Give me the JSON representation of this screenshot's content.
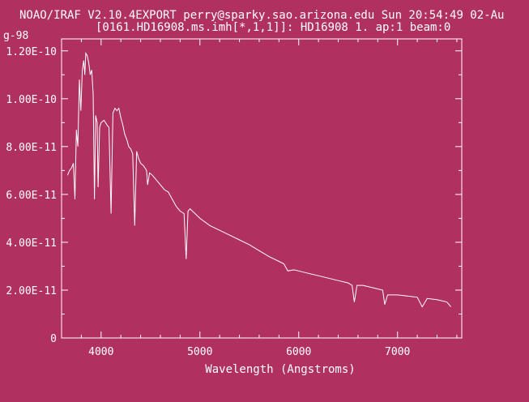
{
  "header": {
    "line1": "NOAO/IRAF V2.10.4EXPORT perry@sparky.sao.arizona.edu Sun 20:54:49 02-Au",
    "line2": "[0161.HD16908.ms.imh[*,1,1]]: HD16908 1. ap:1 beam:0",
    "corner": "g-98"
  },
  "colors": {
    "background": "#b03060",
    "foreground": "#ffffff"
  },
  "chart_data": {
    "type": "line",
    "title": "",
    "xlabel": "Wavelength (Angstroms)",
    "ylabel": "",
    "xlim": [
      3600,
      7650
    ],
    "ylim": [
      0,
      1.25e-10
    ],
    "grid": false,
    "x_ticks": [
      {
        "value": 4000,
        "label": "4000"
      },
      {
        "value": 5000,
        "label": "5000"
      },
      {
        "value": 6000,
        "label": "6000"
      },
      {
        "value": 7000,
        "label": "7000"
      }
    ],
    "y_ticks": [
      {
        "value": 0,
        "label": "0"
      },
      {
        "value": 2e-11,
        "label": "2.00E-11"
      },
      {
        "value": 4e-11,
        "label": "4.00E-11"
      },
      {
        "value": 6e-11,
        "label": "6.00E-11"
      },
      {
        "value": 8e-11,
        "label": "8.00E-11"
      },
      {
        "value": 1e-10,
        "label": "1.00E-10"
      },
      {
        "value": 1.2e-10,
        "label": "1.20E-10"
      }
    ],
    "series": [
      {
        "x": [
          3660,
          3680,
          3700,
          3720,
          3735,
          3750,
          3765,
          3780,
          3795,
          3810,
          3825,
          3835,
          3845,
          3860,
          3875,
          3890,
          3905,
          3920,
          3933,
          3945,
          3960,
          3970,
          3985,
          4000,
          4030,
          4060,
          4080,
          4101,
          4120,
          4140,
          4160,
          4180,
          4200,
          4220,
          4240,
          4260,
          4280,
          4300,
          4320,
          4340,
          4360,
          4380,
          4400,
          4430,
          4460,
          4471,
          4490,
          4520,
          4560,
          4600,
          4640,
          4680,
          4720,
          4760,
          4800,
          4840,
          4861,
          4880,
          4900,
          4950,
          5000,
          5100,
          5200,
          5300,
          5400,
          5500,
          5600,
          5700,
          5800,
          5850,
          5890,
          5950,
          6000,
          6100,
          6200,
          6300,
          6400,
          6500,
          6540,
          6563,
          6590,
          6650,
          6750,
          6850,
          6870,
          6900,
          7000,
          7100,
          7200,
          7250,
          7300,
          7400,
          7500,
          7540
        ],
        "y": [
          6.8e-11,
          7e-11,
          7.1e-11,
          7.3e-11,
          5.8e-11,
          8.7e-11,
          8e-11,
          1.08e-10,
          9.5e-11,
          1.12e-10,
          1.16e-10,
          1.1e-10,
          1.19e-10,
          1.18e-10,
          1.15e-10,
          1.1e-10,
          1.12e-10,
          1.02e-10,
          5.8e-11,
          9.3e-11,
          9e-11,
          6.3e-11,
          8.8e-11,
          9e-11,
          9.1e-11,
          8.9e-11,
          8.8e-11,
          5.2e-11,
          9.4e-11,
          9.6e-11,
          9.5e-11,
          9.6e-11,
          9.2e-11,
          8.9e-11,
          8.5e-11,
          8.3e-11,
          8e-11,
          7.9e-11,
          7.7e-11,
          4.7e-11,
          7.8e-11,
          7.5e-11,
          7.3e-11,
          7.2e-11,
          7e-11,
          6.4e-11,
          6.9e-11,
          6.8e-11,
          6.6e-11,
          6.4e-11,
          6.2e-11,
          6.1e-11,
          5.8e-11,
          5.5e-11,
          5.3e-11,
          5.2e-11,
          3.3e-11,
          5.3e-11,
          5.4e-11,
          5.2e-11,
          5e-11,
          4.7e-11,
          4.5e-11,
          4.3e-11,
          4.1e-11,
          3.9e-11,
          3.65e-11,
          3.4e-11,
          3.2e-11,
          3.1e-11,
          2.8e-11,
          2.85e-11,
          2.8e-11,
          2.7e-11,
          2.6e-11,
          2.5e-11,
          2.4e-11,
          2.3e-11,
          2.2e-11,
          1.5e-11,
          2.2e-11,
          2.2e-11,
          2.1e-11,
          2e-11,
          1.4e-11,
          1.8e-11,
          1.8e-11,
          1.75e-11,
          1.7e-11,
          1.3e-11,
          1.65e-11,
          1.6e-11,
          1.5e-11,
          1.3e-11
        ]
      }
    ]
  }
}
